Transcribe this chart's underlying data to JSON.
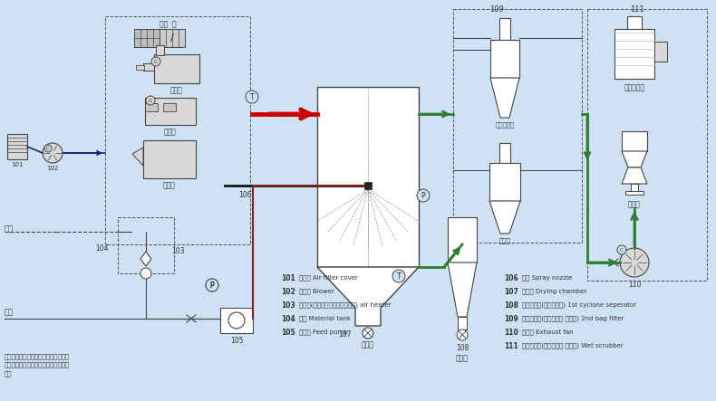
{
  "bg_color": "#cfe2f3",
  "green": "#2e7d32",
  "dark_red": "#8b1a1a",
  "red": "#cc0000",
  "navy": "#1a237e",
  "gray_fill": "#d8d8d8",
  "white": "#ffffff",
  "line_color": "#444444",
  "legend_items_left": [
    {
      "num": "101",
      "zh": "滤风罩",
      "en": "Air filter cover"
    },
    {
      "num": "102",
      "zh": "送风机",
      "en": "Blower"
    },
    {
      "num": "103",
      "zh": "加热器(电、蒸汽、燃油、气、煤)",
      "en": "air heater"
    },
    {
      "num": "104",
      "zh": "料槽",
      "en": "Material tank"
    },
    {
      "num": "105",
      "zh": "供料泵",
      "en": "Feed pump"
    }
  ],
  "legend_items_right": [
    {
      "num": "106",
      "zh": "喷枪",
      "en": "Spray nozzle"
    },
    {
      "num": "107",
      "zh": "干燥塔",
      "en": "Drying chamber"
    },
    {
      "num": "108",
      "zh": "一级收尘器(旋风分离器)",
      "en": "1st cyclone seperator"
    },
    {
      "num": "109",
      "zh": "二级收尘器(旋风分离器 袋滤器)",
      "en": "2nd bag filter"
    },
    {
      "num": "110",
      "zh": "引风机",
      "en": "Exhaust fan"
    },
    {
      "num": "111",
      "zh": "湿式除尘器(水沫除尘器 文丘里)",
      "en": "Wet scrubber"
    }
  ],
  "note": "注：用户可根据当地能源情况选定加热\n方式，根据物料情况选则收尘、除尘方\n式。"
}
